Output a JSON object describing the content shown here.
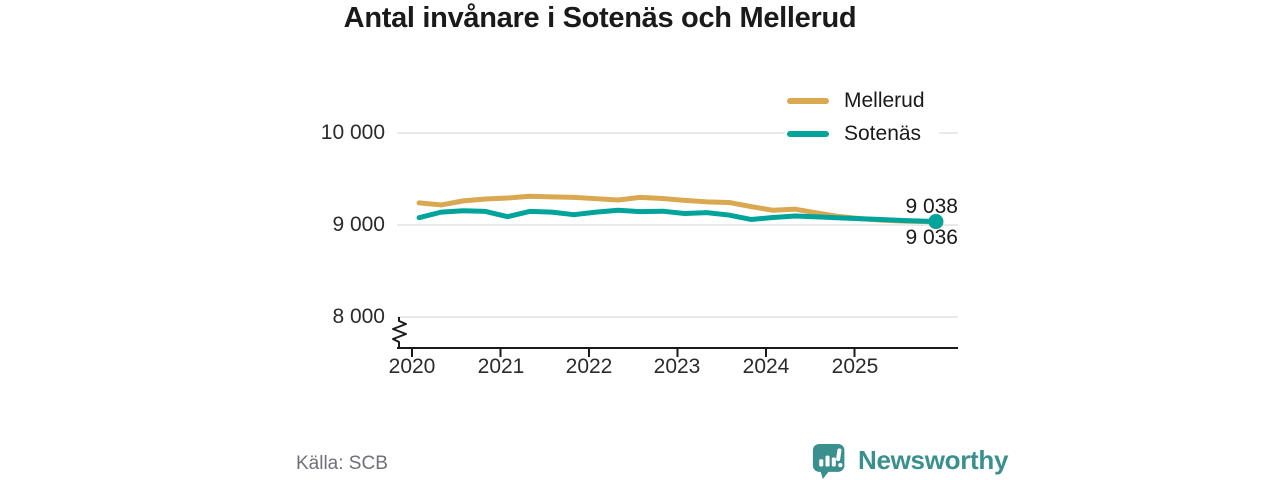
{
  "title": "Antal invånare i Sotenäs och Mellerud",
  "legend": {
    "items": [
      {
        "label": "Mellerud",
        "color": "#D9A850"
      },
      {
        "label": "Sotenäs",
        "color": "#00A49B"
      }
    ]
  },
  "end_labels": {
    "sotenas": "9 038",
    "mellerud": "9 036"
  },
  "footer": {
    "source": "Källa: SCB",
    "brand": "Newsworthy",
    "brand_color": "#3B908E"
  },
  "colors": {
    "mellerud_line": "#D9A850",
    "sotenas_line": "#00A49B",
    "gridline": "#e3e3e3",
    "axis": "#1a1a1a",
    "title_text": "#1a1a1a",
    "tick_text": "#2b2b2b",
    "source_text": "#70707a"
  },
  "chart_data": {
    "type": "line",
    "title": "Antal invånare i Sotenäs och Mellerud",
    "xlabel": "",
    "ylabel": "",
    "x_tick_labels": [
      "2020",
      "2021",
      "2022",
      "2023",
      "2024",
      "2025"
    ],
    "y_tick_labels": [
      "10 000",
      "9 000",
      "8 000"
    ],
    "y_ticks": [
      10000,
      9000,
      8000
    ],
    "ylim": [
      8000,
      10000
    ],
    "y_axis_break": true,
    "grid": "horizontal",
    "legend_position": "top-right",
    "source": "Källa: SCB",
    "x": [
      2020.08,
      2020.33,
      2020.58,
      2020.83,
      2021.08,
      2021.33,
      2021.58,
      2021.83,
      2022.08,
      2022.33,
      2022.58,
      2022.83,
      2023.08,
      2023.33,
      2023.58,
      2023.83,
      2024.08,
      2024.33,
      2024.58,
      2024.83,
      2025.08,
      2025.33,
      2025.58,
      2025.92
    ],
    "series": [
      {
        "name": "Mellerud",
        "color": "#D9A850",
        "end_value": 9036,
        "end_dot": true,
        "values": [
          9240,
          9218,
          9262,
          9283,
          9293,
          9312,
          9306,
          9300,
          9286,
          9272,
          9300,
          9288,
          9268,
          9252,
          9245,
          9200,
          9160,
          9172,
          9130,
          9092,
          9068,
          9052,
          9042,
          9036
        ]
      },
      {
        "name": "Sotenäs",
        "color": "#00A49B",
        "end_value": 9038,
        "end_dot": true,
        "values": [
          9080,
          9140,
          9155,
          9148,
          9090,
          9148,
          9140,
          9112,
          9140,
          9160,
          9145,
          9150,
          9125,
          9135,
          9108,
          9060,
          9082,
          9098,
          9088,
          9078,
          9068,
          9058,
          9048,
          9038
        ]
      }
    ]
  }
}
